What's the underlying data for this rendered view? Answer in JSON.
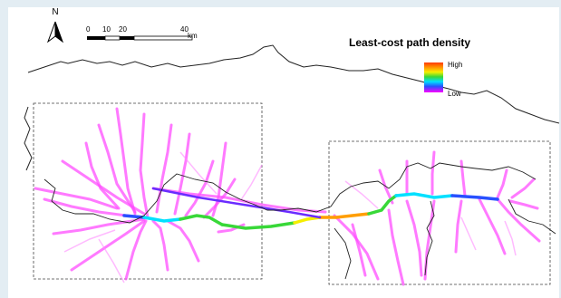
{
  "map": {
    "north_label": "N",
    "scale_ticks": [
      "0",
      "10",
      "20",
      "40"
    ],
    "scale_unit": "km",
    "legend": {
      "title": "Least-cost path density",
      "high_label": "High",
      "low_label": "Low"
    }
  },
  "colors": {
    "background_frame": "#e3edf3",
    "map_background": "#ffffff",
    "low_density": "#ff00ff",
    "mid_low_density": "#2850ff",
    "mid_density": "#00e0ff",
    "mid_high_density": "#38d838",
    "high_density": "#f5ee00",
    "very_high_density": "#ff3a00"
  }
}
